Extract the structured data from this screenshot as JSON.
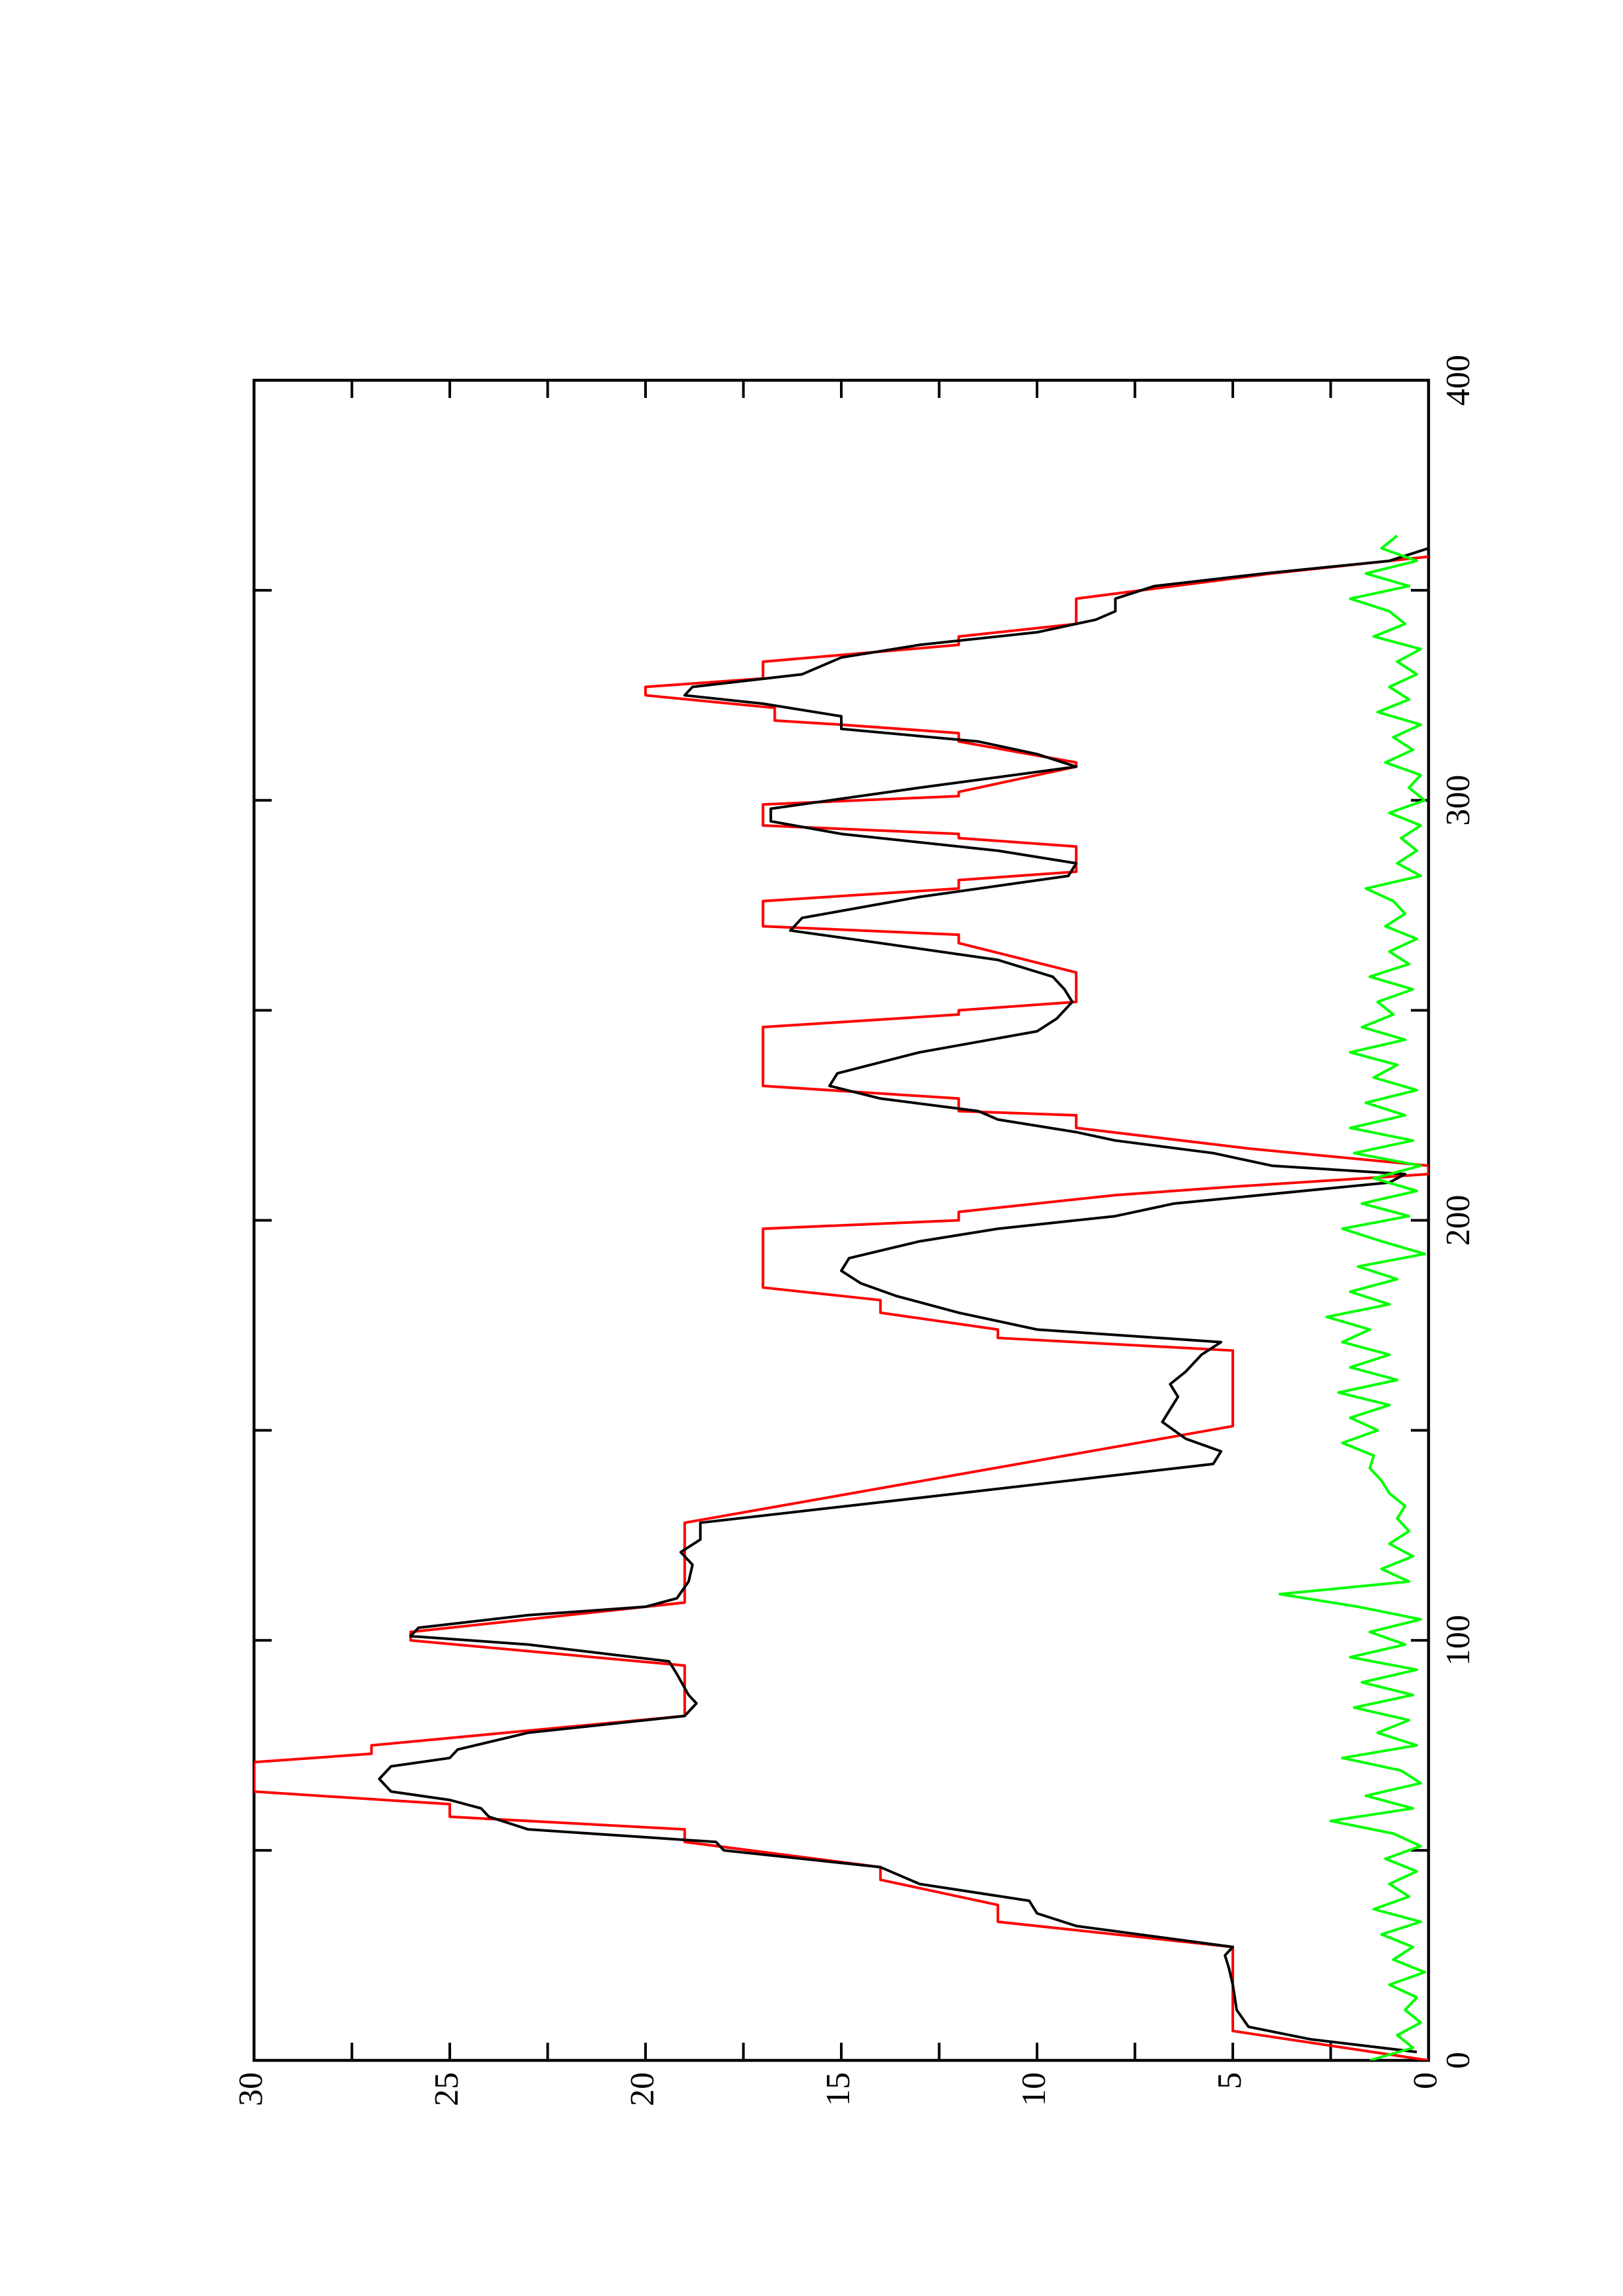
{
  "chart_data": {
    "type": "line",
    "orientation": "rotated",
    "xlim": [
      0,
      400
    ],
    "ylim": [
      0,
      30
    ],
    "xticks": [
      0,
      100,
      200,
      300,
      400
    ],
    "xminorticks": [
      50,
      150,
      250,
      350
    ],
    "yticks": [
      0,
      5,
      10,
      15,
      20,
      25,
      30
    ],
    "yminorticks": [
      2.5,
      7.5,
      12.5,
      17.5,
      22.5,
      27.5
    ],
    "series": [
      {
        "color": "#ff0000",
        "x": [
          0,
          7,
          27,
          33,
          37,
          43,
          46,
          52,
          55,
          58,
          61,
          64,
          71,
          73,
          75,
          82,
          94,
          100,
          102,
          109,
          128,
          151,
          169,
          172,
          174,
          178,
          181,
          184,
          198,
          200,
          202,
          206,
          208,
          211,
          213,
          217,
          222,
          225,
          226,
          229,
          232,
          246,
          249,
          250,
          252,
          259,
          266,
          268,
          270,
          276,
          279,
          281,
          283,
          289,
          291,
          292,
          294,
          299,
          301,
          302,
          308,
          309,
          314,
          316,
          318,
          319,
          322,
          325,
          327,
          329,
          333,
          337,
          339,
          342,
          348,
          354,
          358
        ],
        "values": [
          0,
          5,
          5,
          11,
          11,
          14,
          14,
          19,
          19,
          25,
          25,
          30,
          30,
          27,
          27,
          19,
          19,
          26,
          26,
          19,
          19,
          5,
          5,
          11,
          11,
          14,
          14,
          17,
          17,
          12,
          12,
          8,
          5,
          0,
          0,
          4.5,
          9,
          9,
          12,
          12,
          17,
          17,
          12,
          12,
          9,
          9,
          12,
          12,
          17,
          17,
          12,
          12,
          9,
          9,
          12,
          12,
          17,
          17,
          12,
          12,
          9,
          9,
          12,
          12,
          15,
          16.7,
          16.7,
          20,
          20,
          17,
          17,
          12,
          12,
          9,
          9,
          4,
          0
        ]
      },
      {
        "color": "#000000",
        "x": [
          2,
          5,
          8,
          12,
          18,
          22,
          25,
          27,
          32,
          35,
          38,
          42,
          46,
          50,
          52,
          55,
          58,
          60,
          62,
          64,
          67,
          70,
          72,
          74,
          78,
          82,
          85,
          87,
          92,
          95,
          99,
          101,
          103,
          106,
          108,
          110,
          114,
          118,
          121,
          124,
          128,
          135,
          142,
          145,
          148,
          152,
          155,
          158,
          161,
          164,
          168,
          171,
          174,
          178,
          182,
          185,
          188,
          191,
          195,
          198,
          201,
          204,
          209,
          211,
          213,
          216,
          219,
          221,
          224,
          226,
          229,
          232,
          235,
          240,
          245,
          248,
          252,
          255,
          258,
          262,
          266,
          269,
          272,
          277,
          282,
          285,
          288,
          292,
          295,
          298,
          303,
          308,
          311,
          314,
          317,
          320,
          323,
          325,
          327,
          330,
          334,
          337,
          340,
          343,
          345,
          348,
          351,
          354,
          357,
          360
        ],
        "values": [
          0.3,
          3,
          4.6,
          4.9,
          5,
          5.1,
          5.2,
          5,
          9,
          10,
          10.2,
          13,
          14,
          18,
          18.2,
          23,
          24,
          24.2,
          25,
          26.5,
          26.8,
          26.5,
          25,
          24.8,
          23,
          19,
          18.7,
          18.9,
          19.2,
          19.4,
          23,
          26,
          25.8,
          23,
          20,
          19.2,
          18.9,
          18.8,
          19.1,
          18.6,
          18.6,
          12,
          5.5,
          5.3,
          6.2,
          6.8,
          6.6,
          6.4,
          6.6,
          6.2,
          5.8,
          5.3,
          10,
          12,
          13.6,
          14.5,
          15,
          14.8,
          13,
          11,
          8,
          6.5,
          1,
          0.6,
          4,
          5.5,
          8,
          9,
          11,
          11.5,
          14,
          15.3,
          15.1,
          13,
          10,
          9.5,
          9.1,
          9.3,
          9.6,
          11,
          14,
          16.3,
          16,
          13,
          9.2,
          9,
          11,
          15,
          16.8,
          16.8,
          13,
          9,
          10,
          11.5,
          15,
          15,
          17,
          19,
          18.8,
          16,
          15,
          13,
          10,
          8.5,
          8,
          8,
          7,
          4.2,
          1,
          0
        ]
      },
      {
        "color": "#00ff00",
        "x": [
          0,
          3,
          6,
          9,
          12,
          15,
          18,
          21,
          24,
          27,
          30,
          33,
          36,
          39,
          42,
          45,
          48,
          51,
          54,
          57,
          60,
          63,
          66,
          69,
          72,
          75,
          78,
          81,
          84,
          87,
          90,
          93,
          96,
          99,
          102,
          105,
          108,
          111,
          114,
          117,
          120,
          123,
          126,
          129,
          132,
          135,
          138,
          141,
          144,
          147,
          150,
          153,
          156,
          159,
          162,
          165,
          168,
          171,
          174,
          177,
          180,
          183,
          186,
          189,
          192,
          195,
          198,
          201,
          204,
          207,
          210,
          213,
          216,
          219,
          222,
          225,
          228,
          231,
          234,
          237,
          240,
          243,
          246,
          249,
          252,
          255,
          258,
          261,
          264,
          267,
          270,
          273,
          276,
          279,
          282,
          285,
          288,
          291,
          294,
          297,
          300,
          303,
          306,
          309,
          312,
          315,
          318,
          321,
          324,
          327,
          330,
          333,
          336,
          339,
          342,
          345,
          348,
          351,
          354,
          357,
          360,
          363
        ],
        "values": [
          1.5,
          0.4,
          0.8,
          0.2,
          0.6,
          0.3,
          1.0,
          0.1,
          0.9,
          0.4,
          1.2,
          0.2,
          1.4,
          0.5,
          1.0,
          0.3,
          1.1,
          0.2,
          0.9,
          2.5,
          0.4,
          1.6,
          0.2,
          0.7,
          2.2,
          0.3,
          1.3,
          0.5,
          1.9,
          0.4,
          1.7,
          0.3,
          2.0,
          0.6,
          1.5,
          0.2,
          1.8,
          3.8,
          0.5,
          1.2,
          0.4,
          1.0,
          0.5,
          0.8,
          0.6,
          1.0,
          1.2,
          1.5,
          1.4,
          2.2,
          1.3,
          2.0,
          1.0,
          2.3,
          0.8,
          2.0,
          1.0,
          2.2,
          1.5,
          2.6,
          1.0,
          2.0,
          0.8,
          1.8,
          0.1,
          1.2,
          2.2,
          0.5,
          1.7,
          0.3,
          1.4,
          0.2,
          1.9,
          0.4,
          2.0,
          0.6,
          1.6,
          0.3,
          1.4,
          0.8,
          2.0,
          0.6,
          1.7,
          0.9,
          1.3,
          0.4,
          1.5,
          0.5,
          1.0,
          0.3,
          1.1,
          0.6,
          0.9,
          1.6,
          0.2,
          0.8,
          0.3,
          0.7,
          0.2,
          1.0,
          0.1,
          0.5,
          0.2,
          1.1,
          0.4,
          0.9,
          0.2,
          1.3,
          0.5,
          1.0,
          0.3,
          0.8,
          0.2,
          1.4,
          0.6,
          1.0,
          2.0,
          0.5,
          1.6,
          0.3,
          1.2,
          0.8
        ]
      }
    ]
  }
}
